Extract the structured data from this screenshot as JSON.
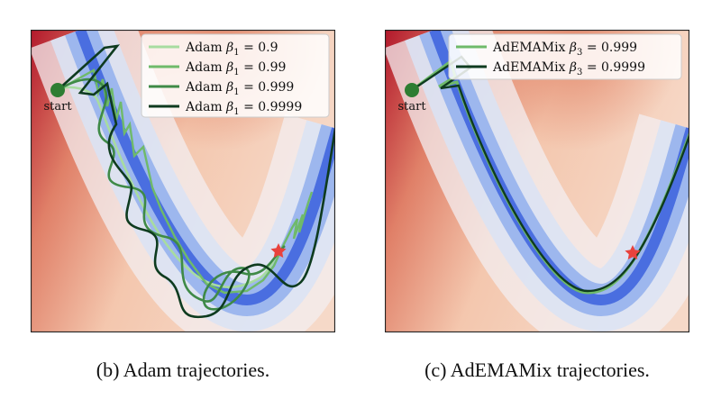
{
  "figures": [
    {
      "caption": "(b) Adam trajectories.",
      "start_label": "start",
      "star_color": "#e8423c",
      "start_color": "#2e7d32",
      "legend": [
        {
          "prefix": "Adam ",
          "beta": "β",
          "sub": "1",
          "eq": " = 0.9",
          "color": "#a8dca0"
        },
        {
          "prefix": "Adam ",
          "beta": "β",
          "sub": "1",
          "eq": " = 0.99",
          "color": "#6fba6a"
        },
        {
          "prefix": "Adam ",
          "beta": "β",
          "sub": "1",
          "eq": " = 0.999",
          "color": "#3f8a47"
        },
        {
          "prefix": "Adam ",
          "beta": "β",
          "sub": "1",
          "eq": " = 0.9999",
          "color": "#0e3b1f"
        }
      ]
    },
    {
      "caption": "(c) AdEMAMix trajectories.",
      "start_label": "start",
      "star_color": "#e8423c",
      "start_color": "#2e7d32",
      "legend": [
        {
          "prefix": "AdEMAMix ",
          "beta": "β",
          "sub": "3",
          "eq": " = 0.999",
          "color": "#6fba6a"
        },
        {
          "prefix": "AdEMAMix ",
          "beta": "β",
          "sub": "3",
          "eq": " = 0.9999",
          "color": "#0e3b1f"
        }
      ]
    }
  ],
  "chart_data": [
    {
      "type": "line",
      "title": "(b) Adam trajectories.",
      "xlabel": "",
      "ylabel": "",
      "grid": false,
      "legend_position": "top-right",
      "background": "loss contour heatmap, blue valley (low) to red (high)",
      "markers": [
        {
          "name": "start"
        },
        {
          "name": "optimum",
          "shape": "star"
        }
      ],
      "series": [
        {
          "name": "Adam β1 = 0.9",
          "color": "#a8dca0"
        },
        {
          "name": "Adam β1 = 0.99",
          "color": "#6fba6a"
        },
        {
          "name": "Adam β1 = 0.999",
          "color": "#3f8a47"
        },
        {
          "name": "Adam β1 = 0.9999",
          "color": "#0e3b1f"
        }
      ]
    },
    {
      "type": "line",
      "title": "(c) AdEMAMix trajectories.",
      "xlabel": "",
      "ylabel": "",
      "grid": false,
      "legend_position": "top-right",
      "background": "loss contour heatmap, blue valley (low) to red (high)",
      "markers": [
        {
          "name": "start"
        },
        {
          "name": "optimum",
          "shape": "star"
        }
      ],
      "series": [
        {
          "name": "AdEMAMix β3 = 0.999",
          "color": "#6fba6a"
        },
        {
          "name": "AdEMAMix β3 = 0.9999",
          "color": "#0e3b1f"
        }
      ]
    }
  ]
}
